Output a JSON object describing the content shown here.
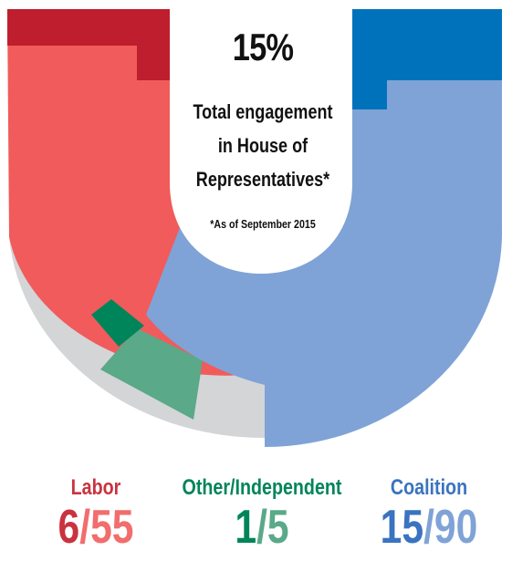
{
  "center": {
    "percent": "15%",
    "lines": [
      "Total engagement",
      "in House of",
      "Representatives*"
    ],
    "note": "*As of September 2015"
  },
  "colors": {
    "labor_engaged": "#bf1e2e",
    "labor_total": "#f15b5b",
    "other_engaged": "#00855a",
    "other_total": "#5aa989",
    "coalition_engaged": "#0072bc",
    "coalition_total": "#7fa3d6",
    "background_ring": "#d4d5d7"
  },
  "legend": [
    {
      "name": "Labor",
      "engaged": "6",
      "sep": "/",
      "total": "55",
      "name_color": "#c9333f",
      "engaged_color": "#c9333f",
      "total_color": "#f26d6d"
    },
    {
      "name": "Other/Independent",
      "engaged": "1",
      "sep": "/",
      "total": "5",
      "name_color": "#00855a",
      "engaged_color": "#00855a",
      "total_color": "#5aa989"
    },
    {
      "name": "Coalition",
      "engaged": "15",
      "sep": "/",
      "total": "90",
      "name_color": "#3a73c0",
      "engaged_color": "#3a73c0",
      "total_color": "#7fa3d6"
    }
  ],
  "chart_data": {
    "type": "pie",
    "title": "",
    "categories": [
      "Labor",
      "Other/Independent",
      "Coalition"
    ],
    "series": [
      {
        "name": "",
        "values": [
          55,
          5,
          90
        ]
      },
      {
        "name": "",
        "values": [
          6,
          1,
          15
        ]
      }
    ],
    "overall_percent": 15
  }
}
